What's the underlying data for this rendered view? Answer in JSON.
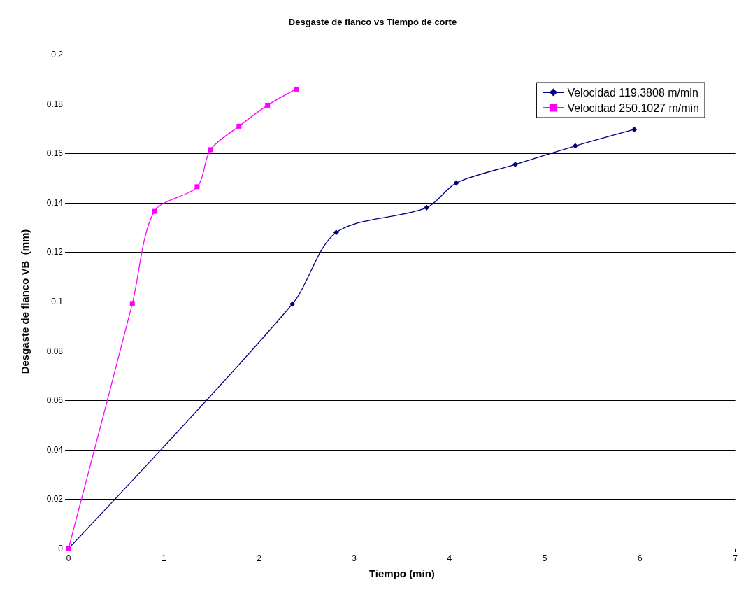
{
  "chart_data": {
    "type": "line",
    "title": "Desgaste de flanco vs Tiempo de corte",
    "xlabel": "Tiempo (min)",
    "ylabel": "Desgaste de flanco VB  (mm)",
    "series": [
      {
        "name": "Velocidad 119.3808 m/min",
        "color": "#000080",
        "marker": "diamond",
        "x": [
          0,
          2.35,
          2.81,
          3.76,
          4.07,
          4.69,
          5.32,
          5.94
        ],
        "values": [
          0,
          0.099,
          0.128,
          0.138,
          0.148,
          0.1555,
          0.163,
          0.1697
        ]
      },
      {
        "name": "Velocidad 250.1027 m/min",
        "color": "#ff00ff",
        "marker": "square",
        "x": [
          0,
          0.67,
          0.9,
          1.35,
          1.49,
          1.79,
          2.09,
          2.39
        ],
        "values": [
          0,
          0.0992,
          0.1365,
          0.1465,
          0.1615,
          0.171,
          0.1795,
          0.186
        ]
      }
    ],
    "xlim": [
      0,
      7
    ],
    "xticks": [
      0,
      1,
      2,
      3,
      4,
      5,
      6,
      7
    ],
    "ylim": [
      0,
      0.2
    ],
    "yticks": [
      0,
      0.02,
      0.04,
      0.06,
      0.08,
      0.1,
      0.12,
      0.14,
      0.16,
      0.18,
      0.2
    ],
    "grid": "y",
    "legend": "top right",
    "line_style": "solid"
  }
}
